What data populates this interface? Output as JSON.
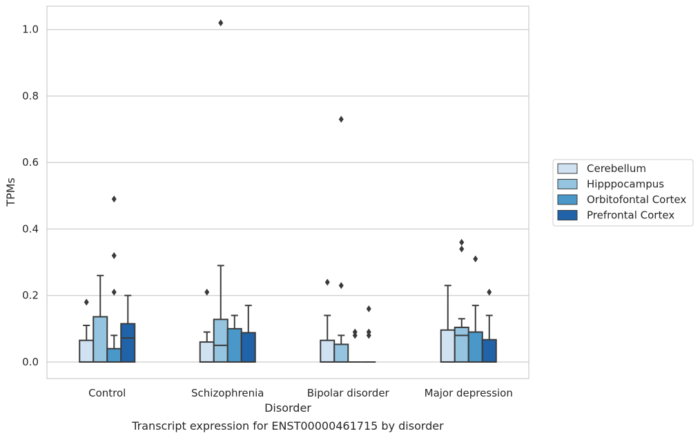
{
  "chart_data": {
    "type": "box",
    "title": "",
    "caption": "Transcript expression for ENST00000461715 by disorder",
    "xlabel": "Disorder",
    "ylabel": "TPMs",
    "ylim": [
      -0.05,
      1.07
    ],
    "yticks": [
      0.0,
      0.2,
      0.4,
      0.6,
      0.8,
      1.0
    ],
    "ytick_labels": [
      "0.0",
      "0.2",
      "0.4",
      "0.6",
      "0.8",
      "1.0"
    ],
    "grid": "horizontal",
    "legend_position": "right",
    "categories": [
      "Control",
      "Schizophrenia",
      "Bipolar disorder",
      "Major depression"
    ],
    "series": [
      {
        "name": "Cerebellum",
        "color": "#d0e1f2",
        "boxes": [
          {
            "q1": 0.0,
            "median": 0.0,
            "q3": 0.065,
            "whisker_low": 0.0,
            "whisker_high": 0.11,
            "outliers": [
              0.18
            ]
          },
          {
            "q1": 0.0,
            "median": 0.0,
            "q3": 0.06,
            "whisker_low": 0.0,
            "whisker_high": 0.09,
            "outliers": [
              0.21
            ]
          },
          {
            "q1": 0.0,
            "median": 0.0,
            "q3": 0.065,
            "whisker_low": 0.0,
            "whisker_high": 0.14,
            "outliers": [
              0.24
            ]
          },
          {
            "q1": 0.0,
            "median": 0.0,
            "q3": 0.096,
            "whisker_low": 0.0,
            "whisker_high": 0.23,
            "outliers": []
          }
        ]
      },
      {
        "name": "Hipppocampus",
        "color": "#94c4df",
        "boxes": [
          {
            "q1": 0.0,
            "median": 0.0,
            "q3": 0.136,
            "whisker_low": 0.0,
            "whisker_high": 0.26,
            "outliers": []
          },
          {
            "q1": 0.0,
            "median": 0.05,
            "q3": 0.128,
            "whisker_low": 0.0,
            "whisker_high": 0.29,
            "outliers": [
              1.02
            ]
          },
          {
            "q1": 0.0,
            "median": 0.0,
            "q3": 0.053,
            "whisker_low": 0.0,
            "whisker_high": 0.08,
            "outliers": [
              0.23,
              0.73
            ]
          },
          {
            "q1": 0.0,
            "median": 0.08,
            "q3": 0.104,
            "whisker_low": 0.0,
            "whisker_high": 0.13,
            "outliers": [
              0.34,
              0.36
            ]
          }
        ]
      },
      {
        "name": "Orbitofontal Cortex",
        "color": "#4a98c9",
        "boxes": [
          {
            "q1": 0.0,
            "median": 0.0,
            "q3": 0.04,
            "whisker_low": 0.0,
            "whisker_high": 0.08,
            "outliers": [
              0.21,
              0.32,
              0.49
            ]
          },
          {
            "q1": 0.0,
            "median": 0.0,
            "q3": 0.1,
            "whisker_low": 0.0,
            "whisker_high": 0.14,
            "outliers": []
          },
          {
            "q1": 0.0,
            "median": 0.0,
            "q3": 0.0,
            "whisker_low": 0.0,
            "whisker_high": 0.0,
            "outliers": [
              0.08,
              0.09
            ]
          },
          {
            "q1": 0.0,
            "median": 0.0,
            "q3": 0.09,
            "whisker_low": 0.0,
            "whisker_high": 0.17,
            "outliers": [
              0.31
            ]
          }
        ]
      },
      {
        "name": "Prefrontal Cortex",
        "color": "#2063a8",
        "boxes": [
          {
            "q1": 0.0,
            "median": 0.072,
            "q3": 0.115,
            "whisker_low": 0.0,
            "whisker_high": 0.2,
            "outliers": []
          },
          {
            "q1": 0.0,
            "median": 0.0,
            "q3": 0.088,
            "whisker_low": 0.0,
            "whisker_high": 0.17,
            "outliers": []
          },
          {
            "q1": 0.0,
            "median": 0.0,
            "q3": 0.0,
            "whisker_low": 0.0,
            "whisker_high": 0.0,
            "outliers": [
              0.08,
              0.09,
              0.16
            ]
          },
          {
            "q1": 0.0,
            "median": 0.0,
            "q3": 0.067,
            "whisker_low": 0.0,
            "whisker_high": 0.14,
            "outliers": [
              0.21
            ]
          }
        ]
      }
    ]
  }
}
